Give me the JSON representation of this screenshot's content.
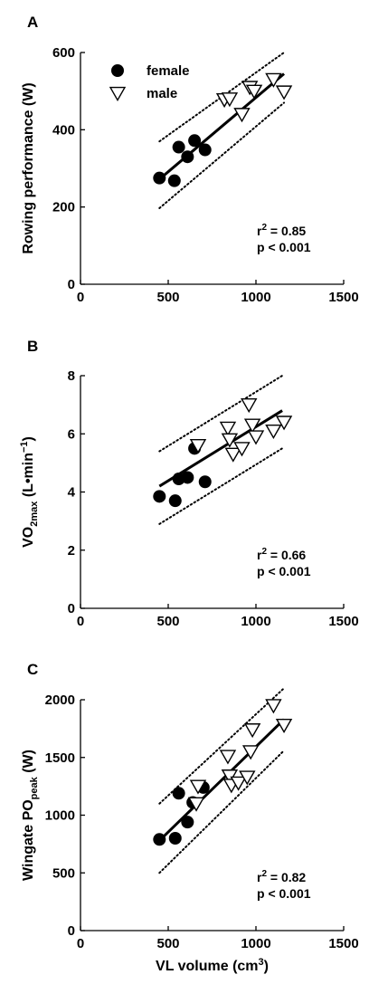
{
  "chart_data": [
    {
      "type": "scatter",
      "panel_letter": "A",
      "ylabel": "Rowing performance (W)",
      "xlabel": "",
      "xlim": [
        0,
        1500
      ],
      "ylim": [
        0,
        600
      ],
      "xticks": [
        "0",
        "500",
        "1000",
        "1500"
      ],
      "yticks": [
        "0",
        "200",
        "400",
        "600"
      ],
      "legend": {
        "position": "top-left",
        "entries": [
          "female",
          "male"
        ]
      },
      "series": [
        {
          "name": "female",
          "marker": "filled-circle",
          "x": [
            450,
            535,
            560,
            610,
            650,
            710
          ],
          "y": [
            275,
            268,
            355,
            330,
            372,
            348
          ]
        },
        {
          "name": "male",
          "marker": "open-triangle-down",
          "x": [
            820,
            850,
            920,
            965,
            990,
            1100,
            1160
          ],
          "y": [
            478,
            480,
            440,
            510,
            500,
            530,
            498
          ]
        }
      ],
      "fit": {
        "x": [
          450,
          1160
        ],
        "y": [
          272,
          545
        ]
      },
      "prediction_band": {
        "x": [
          450,
          1160
        ],
        "upper": [
          370,
          600
        ],
        "lower": [
          197,
          470
        ]
      },
      "stats": {
        "r2_value": "= 0.85",
        "p_text": "p < 0.001"
      }
    },
    {
      "type": "scatter",
      "panel_letter": "B",
      "ylabel": "VO2max (L•min−1)",
      "ylabel_parts": {
        "main": "VO",
        "sub": "2max",
        "unit_open": " (L•min",
        "sup": "−1",
        "unit_close": ")"
      },
      "xlabel": "",
      "xlim": [
        0,
        1500
      ],
      "ylim": [
        0,
        8
      ],
      "xticks": [
        "0",
        "500",
        "1000",
        "1500"
      ],
      "yticks": [
        "0",
        "2",
        "4",
        "6",
        "8"
      ],
      "series": [
        {
          "name": "female",
          "marker": "filled-circle",
          "x": [
            450,
            540,
            560,
            610,
            650,
            710
          ],
          "y": [
            3.85,
            3.7,
            4.45,
            4.5,
            5.5,
            4.35
          ]
        },
        {
          "name": "male",
          "marker": "open-triangle-down",
          "x": [
            670,
            840,
            850,
            870,
            920,
            960,
            980,
            1000,
            1100,
            1160
          ],
          "y": [
            5.6,
            6.2,
            5.8,
            5.3,
            5.5,
            7.0,
            6.3,
            5.9,
            6.1,
            6.4
          ]
        }
      ],
      "fit": {
        "x": [
          450,
          1150
        ],
        "y": [
          4.2,
          6.8
        ]
      },
      "prediction_band": {
        "x": [
          450,
          1150
        ],
        "upper": [
          5.4,
          8.0
        ],
        "lower": [
          2.9,
          5.5
        ]
      },
      "stats": {
        "r2_value": "= 0.66",
        "p_text": "p < 0.001"
      }
    },
    {
      "type": "scatter",
      "panel_letter": "C",
      "ylabel": "Wingate POpeak (W)",
      "ylabel_parts": {
        "main": "Wingate PO",
        "sub": "peak",
        "unit": " (W)"
      },
      "xlabel": "VL volume (cm3)",
      "xlabel_parts": {
        "main": "VL volume (cm",
        "sup": "3",
        "close": ")"
      },
      "xlim": [
        0,
        1500
      ],
      "ylim": [
        0,
        2000
      ],
      "xticks": [
        "0",
        "500",
        "1000",
        "1500"
      ],
      "yticks": [
        "0",
        "500",
        "1000",
        "1500",
        "2000"
      ],
      "series": [
        {
          "name": "female",
          "marker": "filled-circle",
          "x": [
            450,
            540,
            560,
            610,
            640,
            700
          ],
          "y": [
            790,
            800,
            1190,
            940,
            1110,
            1240
          ]
        },
        {
          "name": "male",
          "marker": "open-triangle-down",
          "x": [
            660,
            670,
            840,
            850,
            860,
            900,
            950,
            970,
            980,
            1100,
            1160
          ],
          "y": [
            1100,
            1250,
            1510,
            1340,
            1260,
            1280,
            1330,
            1550,
            1740,
            1950,
            1780
          ]
        }
      ],
      "fit": {
        "x": [
          450,
          1160
        ],
        "y": [
          780,
          1830
        ]
      },
      "prediction_band": {
        "x": [
          450,
          1160
        ],
        "upper": [
          1100,
          2100
        ],
        "lower": [
          500,
          1560
        ]
      },
      "stats": {
        "r2_value": "= 0.82",
        "p_text": "p < 0.001"
      }
    }
  ]
}
